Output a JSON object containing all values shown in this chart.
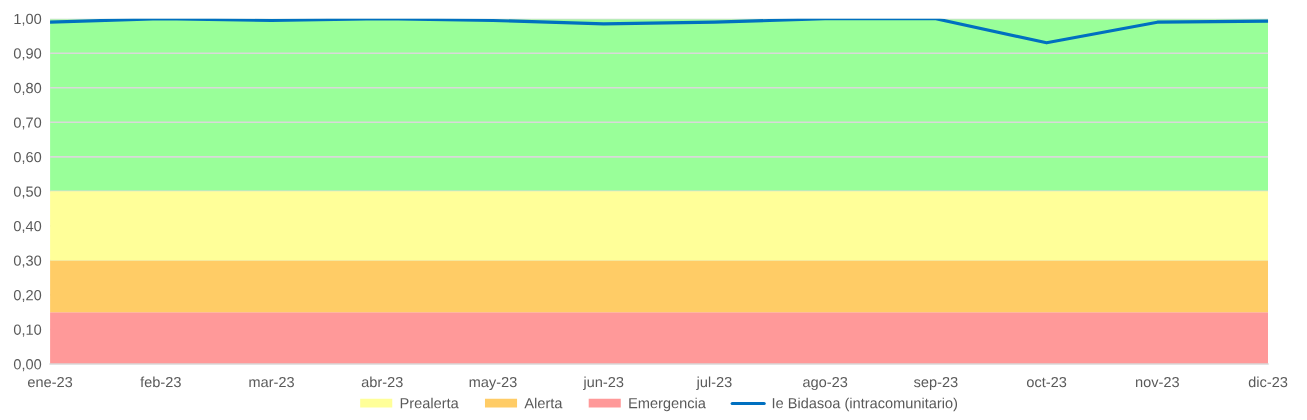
{
  "chart_data": {
    "type": "area",
    "stacked": true,
    "categories": [
      "ene-23",
      "feb-23",
      "mar-23",
      "abr-23",
      "may-23",
      "jun-23",
      "jul-23",
      "ago-23",
      "sep-23",
      "oct-23",
      "nov-23",
      "dic-23"
    ],
    "series": [
      {
        "name": "Emergencia",
        "color": "#ff9999",
        "values": [
          0.15,
          0.15,
          0.15,
          0.15,
          0.15,
          0.15,
          0.15,
          0.15,
          0.15,
          0.15,
          0.15,
          0.15
        ]
      },
      {
        "name": "Alerta",
        "color": "#ffcc66",
        "values": [
          0.15,
          0.15,
          0.15,
          0.15,
          0.15,
          0.15,
          0.15,
          0.15,
          0.15,
          0.15,
          0.15,
          0.15
        ]
      },
      {
        "name": "Prealerta",
        "color": "#ffff99",
        "values": [
          0.2,
          0.2,
          0.2,
          0.2,
          0.2,
          0.2,
          0.2,
          0.2,
          0.2,
          0.2,
          0.2,
          0.2
        ]
      },
      {
        "name": "Ie Bidasoa (intracomunitario)",
        "type": "line",
        "color": "#0070c0",
        "values": [
          0.99,
          1.0,
          0.995,
          1.0,
          0.995,
          0.985,
          0.99,
          1.0,
          1.0,
          0.93,
          0.99,
          0.993
        ]
      }
    ],
    "bands": [
      {
        "axis": "y",
        "from": 0.5,
        "to": 1.0,
        "color": "#99ff99"
      }
    ],
    "ylim": [
      0,
      1
    ],
    "yticks": [
      {
        "value": 0,
        "label": "0,00"
      },
      {
        "value": 0.1,
        "label": "0,10"
      },
      {
        "value": 0.2,
        "label": "0,20"
      },
      {
        "value": 0.3,
        "label": "0,30"
      },
      {
        "value": 0.4,
        "label": "0,40"
      },
      {
        "value": 0.5,
        "label": "0,50"
      },
      {
        "value": 0.6,
        "label": "0,60"
      },
      {
        "value": 0.7,
        "label": "0,70"
      },
      {
        "value": 0.8,
        "label": "0,80"
      },
      {
        "value": 0.9,
        "label": "0,90"
      },
      {
        "value": 1.0,
        "label": "1,00"
      }
    ],
    "grid": "y",
    "legend": "bottom"
  }
}
